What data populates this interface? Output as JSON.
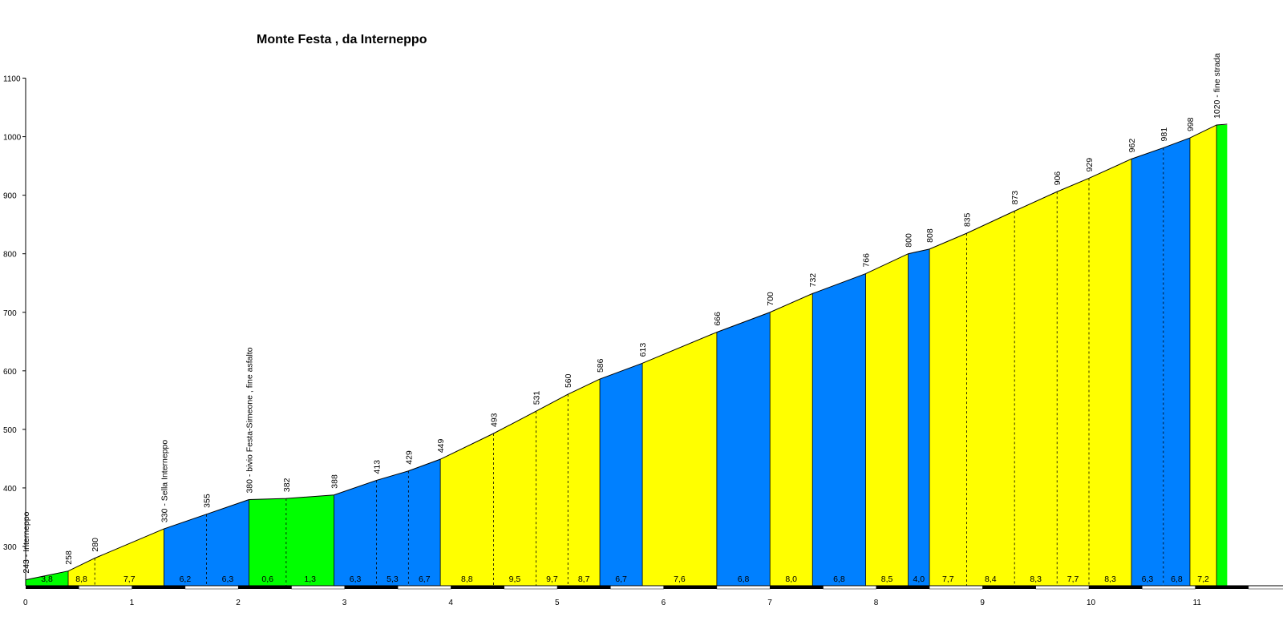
{
  "chart_data": {
    "type": "area",
    "title": "Monte Festa , da Interneppo",
    "xlabel": "",
    "ylabel": "",
    "xlim": [
      0,
      11.9
    ],
    "ylim": [
      220,
      1100
    ],
    "x_ticks": [
      0,
      1,
      2,
      3,
      4,
      5,
      6,
      7,
      8,
      9,
      10,
      11
    ],
    "y_ticks": [
      300,
      400,
      500,
      600,
      700,
      800,
      900,
      1000,
      1100
    ],
    "grid": false,
    "legend": "none",
    "colors": {
      "green": "#00ff00",
      "blue": "#0080ff",
      "yellow": "#ffff00",
      "outline": "#000000"
    },
    "points": [
      {
        "km": 0.0,
        "elev": 243,
        "label": "243 - Interneppo"
      },
      {
        "km": 0.4,
        "elev": 258,
        "label": "258"
      },
      {
        "km": 0.65,
        "elev": 280,
        "label": "280"
      },
      {
        "km": 1.3,
        "elev": 330,
        "label": "330 - Sella Interneppo"
      },
      {
        "km": 1.7,
        "elev": 355,
        "label": "355"
      },
      {
        "km": 2.1,
        "elev": 380,
        "label": "380 - bivio Festa-Simeone , fine asfalto"
      },
      {
        "km": 2.45,
        "elev": 382,
        "label": "382"
      },
      {
        "km": 2.9,
        "elev": 388,
        "label": "388"
      },
      {
        "km": 3.3,
        "elev": 413,
        "label": "413"
      },
      {
        "km": 3.6,
        "elev": 429,
        "label": "429"
      },
      {
        "km": 3.9,
        "elev": 449,
        "label": "449"
      },
      {
        "km": 4.4,
        "elev": 493,
        "label": "493"
      },
      {
        "km": 4.8,
        "elev": 531,
        "label": "531"
      },
      {
        "km": 5.1,
        "elev": 560,
        "label": "560"
      },
      {
        "km": 5.4,
        "elev": 586,
        "label": "586"
      },
      {
        "km": 5.8,
        "elev": 613,
        "label": "613"
      },
      {
        "km": 6.5,
        "elev": 666,
        "label": "666"
      },
      {
        "km": 7.0,
        "elev": 700,
        "label": "700"
      },
      {
        "km": 7.4,
        "elev": 732,
        "label": "732"
      },
      {
        "km": 7.9,
        "elev": 766,
        "label": "766"
      },
      {
        "km": 8.3,
        "elev": 800,
        "label": "800"
      },
      {
        "km": 8.5,
        "elev": 808,
        "label": "808"
      },
      {
        "km": 8.85,
        "elev": 835,
        "label": "835"
      },
      {
        "km": 9.3,
        "elev": 873,
        "label": "873"
      },
      {
        "km": 9.7,
        "elev": 906,
        "label": "906"
      },
      {
        "km": 10.0,
        "elev": 929,
        "label": "929"
      },
      {
        "km": 10.4,
        "elev": 962,
        "label": "962"
      },
      {
        "km": 10.7,
        "elev": 981,
        "label": "981"
      },
      {
        "km": 10.95,
        "elev": 998,
        "label": "998"
      },
      {
        "km": 11.2,
        "elev": 1020,
        "label": "1020 - fine strada"
      }
    ],
    "segments": [
      {
        "from": 0.0,
        "to": 0.4,
        "gradient": "3,8",
        "color": "green"
      },
      {
        "from": 0.4,
        "to": 0.65,
        "gradient": "8,8",
        "color": "yellow"
      },
      {
        "from": 0.65,
        "to": 1.3,
        "gradient": "7,7",
        "color": "yellow"
      },
      {
        "from": 1.3,
        "to": 1.7,
        "gradient": "6,2",
        "color": "blue"
      },
      {
        "from": 1.7,
        "to": 2.1,
        "gradient": "6,3",
        "color": "blue"
      },
      {
        "from": 2.1,
        "to": 2.45,
        "gradient": "0,6",
        "color": "green"
      },
      {
        "from": 2.45,
        "to": 2.9,
        "gradient": "1,3",
        "color": "green"
      },
      {
        "from": 2.9,
        "to": 3.3,
        "gradient": "6,3",
        "color": "blue"
      },
      {
        "from": 3.3,
        "to": 3.6,
        "gradient": "5,3",
        "color": "blue"
      },
      {
        "from": 3.6,
        "to": 3.9,
        "gradient": "6,7",
        "color": "blue"
      },
      {
        "from": 3.9,
        "to": 4.4,
        "gradient": "8,8",
        "color": "yellow"
      },
      {
        "from": 4.4,
        "to": 4.8,
        "gradient": "9,5",
        "color": "yellow"
      },
      {
        "from": 4.8,
        "to": 5.1,
        "gradient": "9,7",
        "color": "yellow"
      },
      {
        "from": 5.1,
        "to": 5.4,
        "gradient": "8,7",
        "color": "yellow"
      },
      {
        "from": 5.4,
        "to": 5.8,
        "gradient": "6,7",
        "color": "blue"
      },
      {
        "from": 5.8,
        "to": 6.5,
        "gradient": "7,6",
        "color": "yellow"
      },
      {
        "from": 6.5,
        "to": 7.0,
        "gradient": "6,8",
        "color": "blue"
      },
      {
        "from": 7.0,
        "to": 7.4,
        "gradient": "8,0",
        "color": "yellow"
      },
      {
        "from": 7.4,
        "to": 7.9,
        "gradient": "6,8",
        "color": "blue"
      },
      {
        "from": 7.9,
        "to": 8.3,
        "gradient": "8,5",
        "color": "yellow"
      },
      {
        "from": 8.3,
        "to": 8.5,
        "gradient": "4,0",
        "color": "blue"
      },
      {
        "from": 8.5,
        "to": 8.85,
        "gradient": "7,7",
        "color": "yellow"
      },
      {
        "from": 8.85,
        "to": 9.3,
        "gradient": "8,4",
        "color": "yellow"
      },
      {
        "from": 9.3,
        "to": 9.7,
        "gradient": "8,3",
        "color": "yellow"
      },
      {
        "from": 9.7,
        "to": 10.0,
        "gradient": "7,7",
        "color": "yellow"
      },
      {
        "from": 10.0,
        "to": 10.4,
        "gradient": "8,3",
        "color": "yellow"
      },
      {
        "from": 10.4,
        "to": 10.7,
        "gradient": "6,3",
        "color": "blue"
      },
      {
        "from": 10.7,
        "to": 10.95,
        "gradient": "6,8",
        "color": "blue"
      },
      {
        "from": 10.95,
        "to": 11.2,
        "gradient": "7,2",
        "color": "yellow"
      },
      {
        "from": 11.2,
        "to": 11.3,
        "gradient": "",
        "color": "green"
      }
    ]
  }
}
